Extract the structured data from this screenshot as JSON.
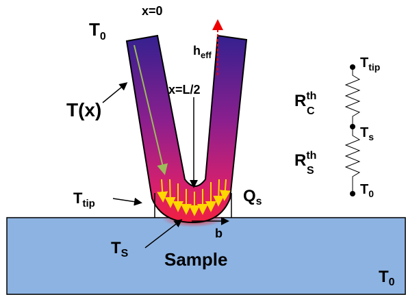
{
  "labels": {
    "t0_top": {
      "base": "T",
      "sub": "0"
    },
    "x0": "x=0",
    "heff": {
      "base": "h",
      "sub": "eff"
    },
    "tx": "T(x)",
    "xl2": "x=L/2",
    "ttip": {
      "base": "T",
      "sub": "tip"
    },
    "qs": {
      "base": "Q",
      "sub": "s"
    },
    "ts": {
      "base": "T",
      "sub": "S"
    },
    "b": "b",
    "sample": "Sample",
    "t0_bottom": {
      "base": "T",
      "sub": "0"
    }
  },
  "circuit": {
    "ttip": {
      "base": "T",
      "sub": "tip"
    },
    "rc": {
      "base": "R",
      "sup": "th",
      "sub": "C"
    },
    "ts": {
      "base": "T",
      "sub": "s"
    },
    "rs": {
      "base": "R",
      "sup": "th",
      "sub": "S"
    },
    "t0": {
      "base": "T",
      "sub": "0"
    }
  }
}
